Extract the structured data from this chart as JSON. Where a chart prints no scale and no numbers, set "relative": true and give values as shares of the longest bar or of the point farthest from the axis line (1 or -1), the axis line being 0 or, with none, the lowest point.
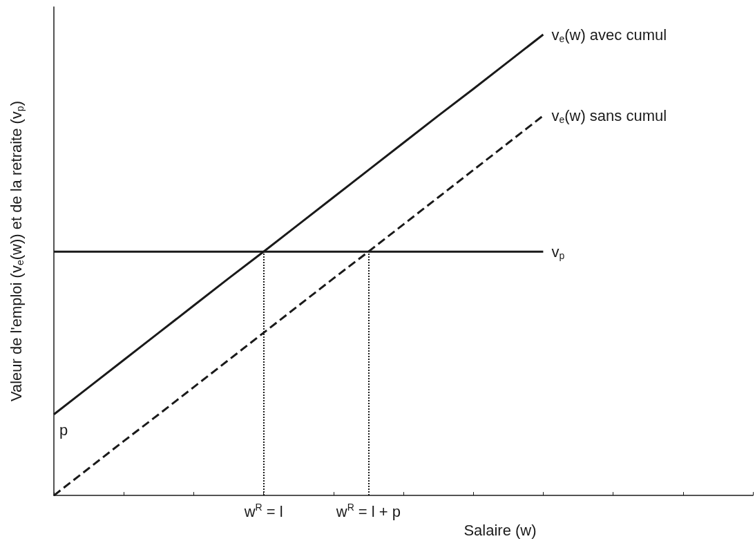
{
  "chart_data": {
    "type": "line",
    "relative": true,
    "xlabel": "Salaire (w)",
    "ylabel": "Valeur de l'emploi (v$_{e}$(w)) et de la retraite (v$_{p}$)",
    "categories": [
      null,
      null,
      null,
      null,
      null,
      null,
      "w$^{R}$ = l",
      null,
      null,
      "w$^{R}$ = l + p",
      null,
      null,
      null,
      null,
      null,
      null,
      null,
      null,
      null,
      null,
      null
    ],
    "series": [
      {
        "name": "v$_{e}$(w) avec cumul",
        "color": "#1a1a1a",
        "line_style": "solid",
        "values": [
          0.176,
          0.235,
          0.294,
          0.353,
          0.412,
          0.471,
          0.529,
          0.588,
          0.647,
          0.706,
          0.765,
          0.824,
          0.882,
          0.941,
          1.0,
          null,
          null,
          null,
          null,
          null,
          null
        ]
      },
      {
        "name": "v$_{e}$(w) sans cumul",
        "color": "#1a1a1a",
        "line_style": "dashed",
        "values": [
          0,
          0.059,
          0.118,
          0.176,
          0.235,
          0.294,
          0.353,
          0.412,
          0.471,
          0.529,
          0.588,
          0.647,
          0.706,
          0.765,
          0.824,
          null,
          null,
          null,
          null,
          null,
          null
        ]
      },
      {
        "name": "v$_{p}$",
        "color": "#1a1a1a",
        "line_style": "solid",
        "values": [
          0.529,
          0.529,
          0.529,
          0.529,
          0.529,
          0.529,
          0.529,
          0.529,
          0.529,
          0.529,
          0.529,
          0.529,
          0.529,
          0.529,
          0.529,
          null,
          null,
          null,
          null,
          null,
          null
        ]
      }
    ],
    "ref_lines": [
      {
        "axis": "x",
        "value": "w$^{R}$ = l",
        "label": null,
        "line_style": "dotted",
        "color": "#1a1a1a"
      },
      {
        "axis": "x",
        "value": "w$^{R}$ = l + p",
        "label": null,
        "line_style": "dotted",
        "color": "#1a1a1a"
      }
    ],
    "annotations": [
      "p"
    ],
    "legend": false,
    "marker": "none"
  }
}
